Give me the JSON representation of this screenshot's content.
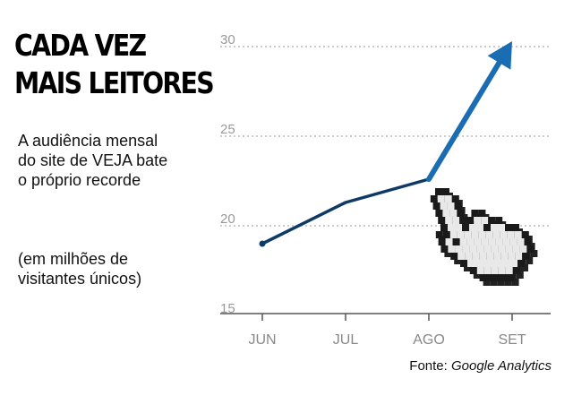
{
  "heading": {
    "line1": "CADA VEZ",
    "line2": "MAIS LEITORES"
  },
  "subtitle": "A audiência mensal do site de VEJA bate o próprio recorde",
  "note": "(em milhões de visitantes únicos)",
  "source": {
    "prefix": "Fonte: ",
    "name": "Google Analytics"
  },
  "colors": {
    "line_dark": "#0d3a66",
    "line_bright": "#1a6db3",
    "grid": "#9a9a9a",
    "axis": "#555555"
  },
  "icon": "pixel-hand-cursor-icon",
  "chart_data": {
    "type": "line",
    "categories": [
      "JUN",
      "JUL",
      "AGO",
      "SET"
    ],
    "values": [
      19,
      21.3,
      22.6,
      30.3
    ],
    "yticks": [
      15,
      20,
      25,
      30
    ],
    "ylim": [
      15,
      30
    ],
    "grid": true,
    "last_point_arrow": true
  }
}
